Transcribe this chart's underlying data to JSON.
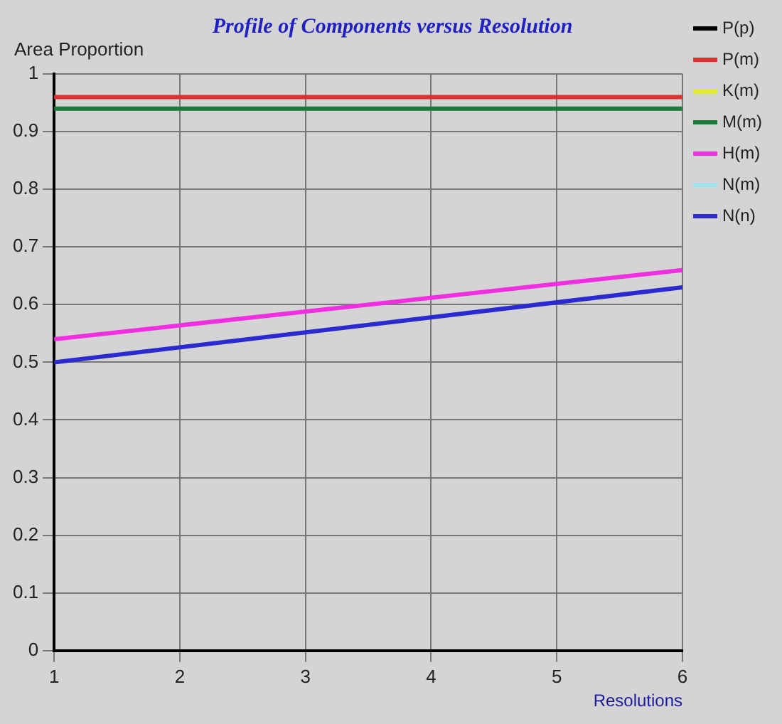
{
  "chart_data": {
    "type": "line",
    "title": "Profile of Components versus Resolution",
    "xlabel": "Resolutions",
    "ylabel": "Area Proportion",
    "xlim": [
      1,
      6
    ],
    "xticks": [
      1,
      2,
      3,
      4,
      5,
      6
    ],
    "ylim": [
      0,
      1
    ],
    "yticks": [
      0,
      0.1,
      0.2,
      0.3,
      0.4,
      0.5,
      0.6,
      0.7,
      0.8,
      0.9,
      1
    ],
    "grid": true,
    "legend": "right",
    "marker": "none",
    "line_style": "solid",
    "x": [
      1,
      6
    ],
    "series": [
      {
        "name": "P(p)",
        "color": "#000000",
        "values": [
          null,
          null
        ]
      },
      {
        "name": "P(m)",
        "color": "#e03030",
        "values": [
          0.96,
          0.96
        ]
      },
      {
        "name": "K(m)",
        "color": "#e8e830",
        "values": [
          null,
          null
        ]
      },
      {
        "name": "M(m)",
        "color": "#1a7a3a",
        "values": [
          0.94,
          0.94
        ]
      },
      {
        "name": "H(m)",
        "color": "#f030e0",
        "values": [
          0.54,
          0.66
        ]
      },
      {
        "name": "N(m)",
        "color": "#a0e0e8",
        "values": [
          null,
          null
        ]
      },
      {
        "name": "N(n)",
        "color": "#2a2ad0",
        "values": [
          0.5,
          0.63
        ]
      }
    ]
  }
}
